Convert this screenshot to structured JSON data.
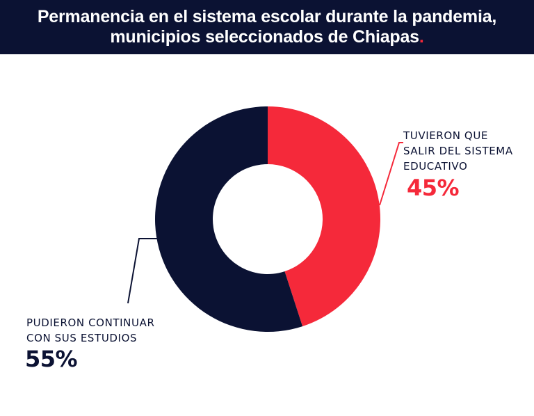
{
  "header": {
    "title_line1": "Permanencia en el sistema escolar durante la pandemia,",
    "title_line2": "municipios seleccionados de Chiapas",
    "title_dot": "."
  },
  "colors": {
    "header_bg": "#0b1233",
    "navy": "#0b1233",
    "red": "#f5293a"
  },
  "chart_data": {
    "type": "pie",
    "variant": "donut",
    "title": "Permanencia en el sistema escolar durante la pandemia, municipios seleccionados de Chiapas.",
    "slices": [
      {
        "label_lines": [
          "TUVIERON QUE",
          "SALIR DEL SISTEMA",
          "EDUCATIVO"
        ],
        "value": 45,
        "value_label": "45%",
        "color": "#f5293a"
      },
      {
        "label_lines": [
          "PUDIERON CONTINUAR",
          "CON SUS ESTUDIOS"
        ],
        "value": 55,
        "value_label": "55%",
        "color": "#0b1233"
      }
    ]
  }
}
